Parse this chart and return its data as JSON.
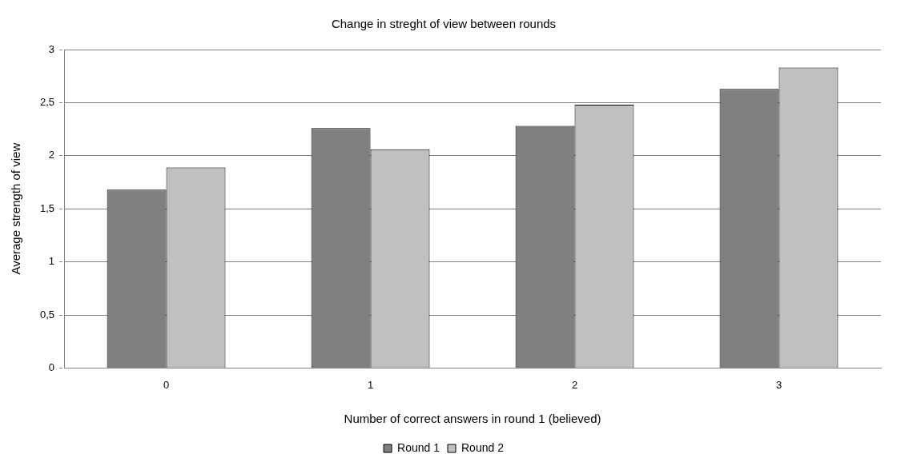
{
  "chart_data": {
    "type": "bar",
    "title": "Change in streght of view between rounds",
    "xlabel": "Number of correct answers in round 1 (believed)",
    "ylabel": "Average strength of view",
    "categories": [
      "0",
      "1",
      "2",
      "3"
    ],
    "series": [
      {
        "name": "Round 1",
        "color": "#808080",
        "values": [
          1.68,
          2.26,
          2.28,
          2.63
        ]
      },
      {
        "name": "Round 2",
        "color": "#c0c0c0",
        "values": [
          1.89,
          2.06,
          2.48,
          2.83
        ]
      }
    ],
    "ylim": [
      0,
      3
    ],
    "yticks": [
      0,
      {
        "value": 0.5,
        "label": "0,5"
      },
      1,
      {
        "value": 1.5,
        "label": "1,5"
      },
      2,
      {
        "value": 2.5,
        "label": "2,5"
      },
      3
    ],
    "grid": "y",
    "legend": "bottom"
  }
}
